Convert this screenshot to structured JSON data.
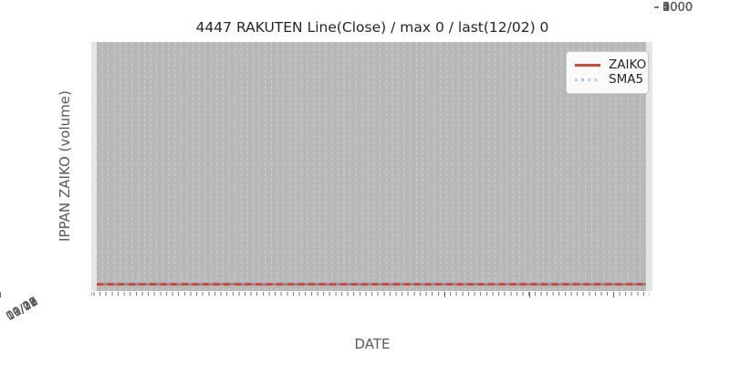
{
  "chart_data": {
    "type": "line",
    "title": "4447 RAKUTEN Line(Close) / max 0 / last(12/02) 0",
    "xlabel": "DATE",
    "ylabel": "IPPAN ZAIKO (volume)",
    "x_ticklabels": [
      "09/03",
      "09/17",
      "10/01",
      "10/15",
      "10/29",
      "11/12",
      "11/26"
    ],
    "x_range": [
      "09/03",
      "12/02"
    ],
    "y_ticks": [
      0,
      1000,
      2000,
      3000,
      4000,
      5000
    ],
    "y_ticklabels_top_down": [
      "5000",
      "4000",
      "3000",
      "2000",
      "1000",
      "0"
    ],
    "ylim": [
      0,
      5000
    ],
    "grid": "dashed vertical gridline at every daily date over gray band",
    "legend_position": "upper right",
    "series": [
      {
        "name": "ZAIKO",
        "style": "solid",
        "color": "#d9452e",
        "values_constant": 0,
        "description": "flat line at 0 across entire date range"
      },
      {
        "name": "SMA5",
        "style": "dotted",
        "color": "#a7c8e6",
        "values_constant": 0,
        "description": "flat dotted line at 0, overlapping ZAIKO line"
      }
    ],
    "stats": {
      "max": 0,
      "last_date": "12/02",
      "last_value": 0
    }
  },
  "colors": {
    "figure_background": "#ffffff",
    "plot_background": "#e5e5e5",
    "data_band": "#b8b8b8",
    "gridline_dash": "#cfcfcf",
    "tick_mark": "#757575",
    "tick_label": "#595959",
    "title_text": "#262626",
    "zaiko_red": "#d9452e",
    "sma5_blue": "#a7c8e6",
    "legend_border": "#c9c9c9"
  }
}
